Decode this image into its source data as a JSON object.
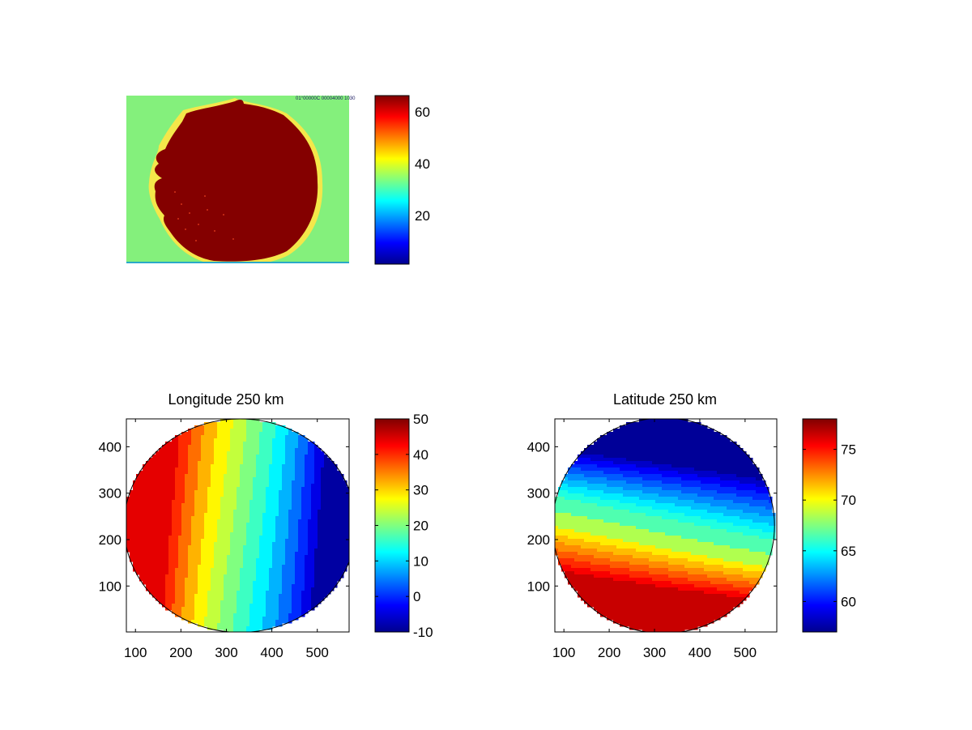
{
  "figure": {
    "background": "#ffffff",
    "colormap": "jet"
  },
  "chart_data": [
    {
      "type": "heatmap",
      "title": "",
      "image_header_text": "01°00000C 00004000 1030",
      "description_values": {
        "background_level": 35,
        "disk_level": 63,
        "rim_level": 50,
        "colorbar_range": [
          1,
          65
        ]
      },
      "colorbar": {
        "ticks": [
          20,
          40,
          60
        ],
        "range": [
          1,
          65
        ]
      }
    },
    {
      "type": "heatmap",
      "title": "Longitude 250 km",
      "x_ticks": [
        100,
        200,
        300,
        400,
        500
      ],
      "y_ticks": [
        100,
        200,
        300,
        400
      ],
      "xlim": [
        80,
        570
      ],
      "ylim": [
        1,
        460
      ],
      "disk": {
        "center_x": 330,
        "center_y": 230,
        "radius_x": 255,
        "radius_y": 230
      },
      "contour_levels": [
        -6,
        -2,
        2,
        6,
        10,
        14,
        18,
        22,
        26,
        30,
        34,
        38,
        42
      ],
      "value_model": {
        "center_value": 20,
        "east_west_gradient_per_unit": -0.12,
        "tilt": 0.18
      },
      "colorbar": {
        "ticks": [
          -10,
          0,
          10,
          20,
          30,
          40,
          50
        ],
        "range": [
          -10,
          50
        ]
      }
    },
    {
      "type": "heatmap",
      "title": "Latitude 250 km",
      "x_ticks": [
        100,
        200,
        300,
        400,
        500
      ],
      "y_ticks": [
        100,
        200,
        300,
        400
      ],
      "xlim": [
        80,
        570
      ],
      "ylim": [
        1,
        460
      ],
      "disk": {
        "center_x": 320,
        "center_y": 230,
        "radius_x": 245,
        "radius_y": 232
      },
      "contour_levels": [
        58,
        59,
        60,
        61,
        62,
        63,
        64,
        65,
        66,
        68,
        70,
        71,
        72,
        73,
        74,
        75,
        76
      ],
      "value_model": {
        "center_value": 67,
        "north_south_gradient": -0.06,
        "tilt": 0.12
      },
      "colorbar": {
        "ticks": [
          60,
          65,
          70,
          75
        ],
        "range": [
          57,
          78
        ]
      }
    }
  ]
}
